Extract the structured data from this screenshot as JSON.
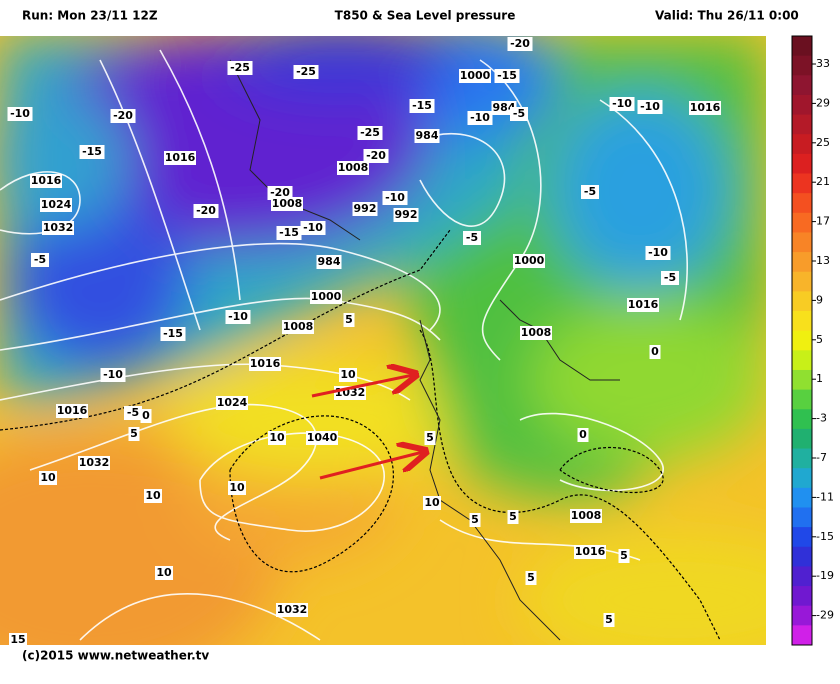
{
  "header": {
    "run": "Run: Mon 23/11 12Z",
    "title": "T850 & Sea Level pressure",
    "valid": "Valid: Thu 26/11 0:00"
  },
  "footer": "(c)2015 www.netweather.tv",
  "colorbar": {
    "labels": [
      "33",
      "29",
      "25",
      "21",
      "17",
      "13",
      "9",
      "5",
      "1",
      "-3",
      "-7",
      "-11",
      "-15",
      "-19",
      "-29"
    ],
    "colors": [
      "#6a1020",
      "#7c1226",
      "#8e1530",
      "#a0162c",
      "#b41a28",
      "#c81c22",
      "#dc2020",
      "#ec3420",
      "#f45020",
      "#f86a22",
      "#f88426",
      "#f89c2a",
      "#f8b42a",
      "#f8cc24",
      "#f8e01c",
      "#f0f010",
      "#c8f018",
      "#90e030",
      "#58d040",
      "#30c050",
      "#20b070",
      "#20b0a0",
      "#20a8d0",
      "#2090f0",
      "#2070f0",
      "#2048e8",
      "#3030d8",
      "#5020d0",
      "#7018d0",
      "#9818d8",
      "#d020e8"
    ]
  },
  "map": {
    "labels": [
      "-20",
      "-25",
      "-25",
      "1000",
      "-15",
      "-10",
      "-20",
      "-15",
      "984",
      "-10",
      "-5",
      "-10",
      "-10",
      "1016",
      "-25",
      "984",
      "-15",
      "1016",
      "-20",
      "1008",
      "1016",
      "1024",
      "-20",
      "1008",
      "-10",
      "992",
      "992",
      "-5",
      "-20",
      "1032",
      "-15",
      "-10",
      "-5",
      "-5",
      "984",
      "1000",
      "-10",
      "-5",
      "1000",
      "-10",
      "5",
      "1008",
      "1016",
      "1008",
      "-15",
      "1016",
      "0",
      "-10",
      "10",
      "1032",
      "1024",
      "1016",
      "-5",
      "0",
      "10",
      "1040",
      "5",
      "0",
      "5",
      "1032",
      "10",
      "10",
      "10",
      "10",
      "5",
      "5",
      "1008",
      "1016",
      "5",
      "10",
      "5",
      "1032",
      "5",
      "15"
    ]
  }
}
